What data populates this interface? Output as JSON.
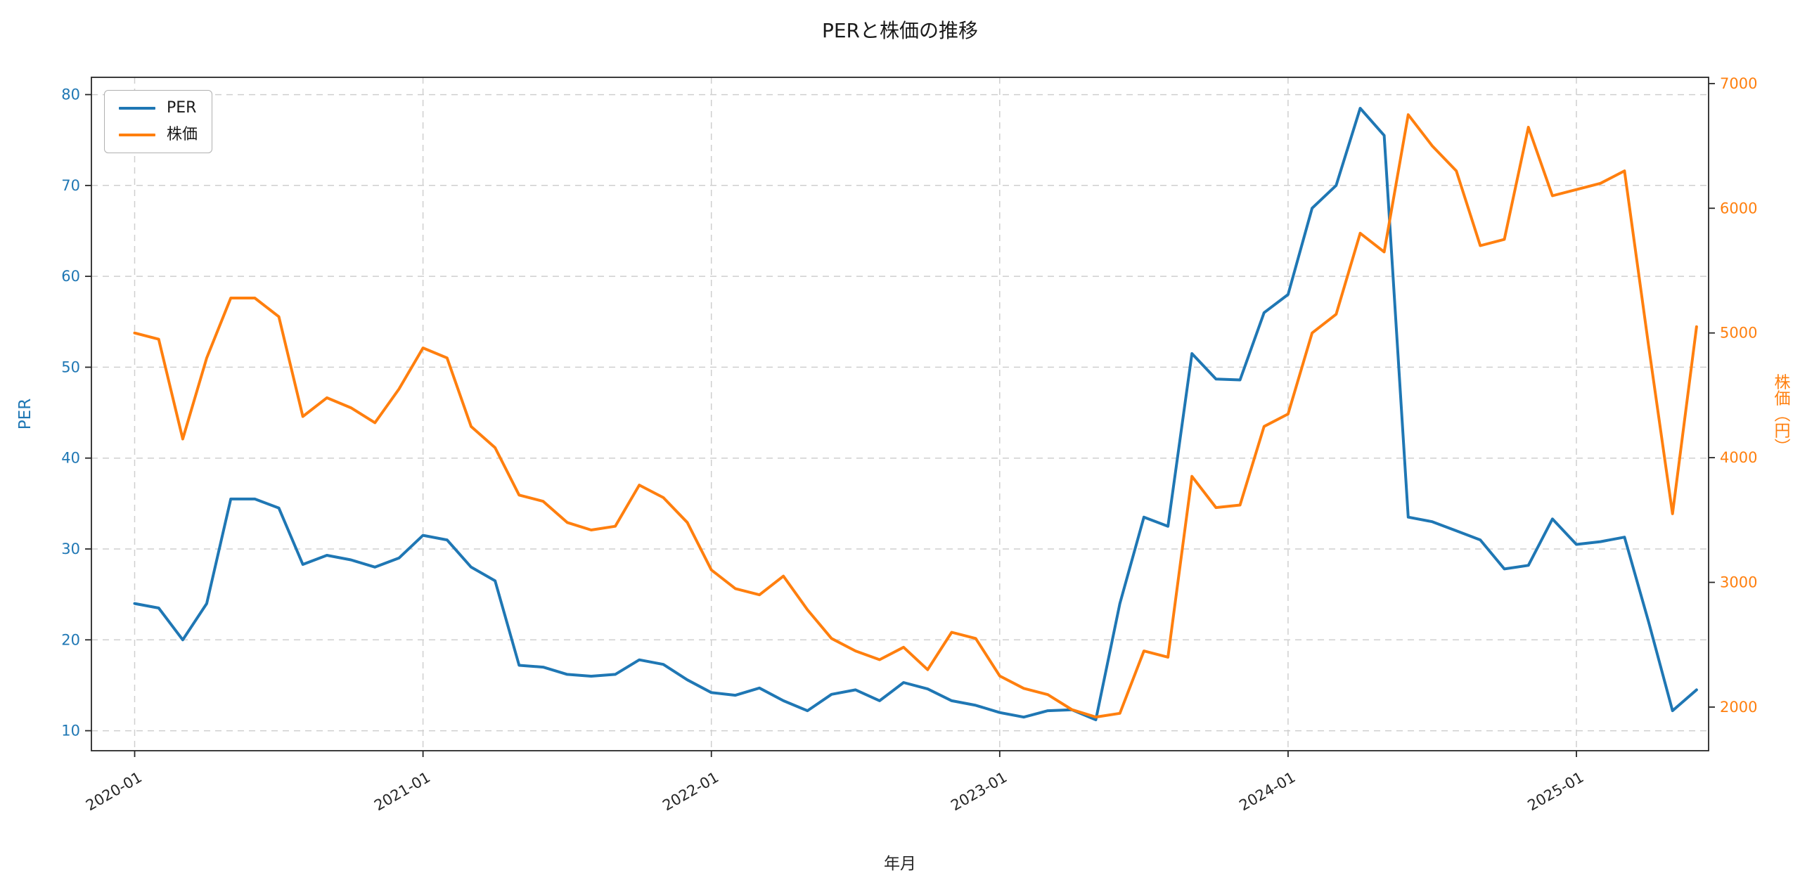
{
  "title": "PERと株価の推移",
  "x_axis": {
    "label": "年月",
    "tick_labels": [
      "2020-01",
      "2021-01",
      "2022-01",
      "2023-01",
      "2024-01",
      "2025-01"
    ]
  },
  "left_axis": {
    "label": "PER",
    "color": "#1f77b4",
    "ticks": [
      10,
      20,
      30,
      40,
      50,
      60,
      70,
      80
    ],
    "range": [
      7.8,
      81.9
    ]
  },
  "right_axis": {
    "label": "株価（円）",
    "color": "#ff7f0e",
    "ticks": [
      2000,
      3000,
      4000,
      5000,
      6000,
      7000
    ],
    "range": [
      1650,
      7050
    ]
  },
  "legend": {
    "position": "upper left",
    "items": [
      {
        "label": "PER",
        "color": "#1f77b4"
      },
      {
        "label": "株価",
        "color": "#ff7f0e"
      }
    ]
  },
  "chart_data": {
    "type": "line",
    "title": "PERと株価の推移",
    "xlabel": "年月",
    "ylabel_left": "PER",
    "ylabel_right": "株価（円）",
    "grid": true,
    "legend_position": "upper left",
    "x_tick_indices": [
      0,
      12,
      24,
      36,
      48,
      60
    ],
    "x_range_months": [
      -1.8,
      65.5
    ],
    "x": [
      "2020-01",
      "2020-02",
      "2020-03",
      "2020-04",
      "2020-05",
      "2020-06",
      "2020-07",
      "2020-08",
      "2020-09",
      "2020-10",
      "2020-11",
      "2020-12",
      "2021-01",
      "2021-02",
      "2021-03",
      "2021-04",
      "2021-05",
      "2021-06",
      "2021-07",
      "2021-08",
      "2021-09",
      "2021-10",
      "2021-11",
      "2021-12",
      "2022-01",
      "2022-02",
      "2022-03",
      "2022-04",
      "2022-05",
      "2022-06",
      "2022-07",
      "2022-08",
      "2022-09",
      "2022-10",
      "2022-11",
      "2022-12",
      "2023-01",
      "2023-02",
      "2023-03",
      "2023-04",
      "2023-05",
      "2023-06",
      "2023-07",
      "2023-08",
      "2023-09",
      "2023-10",
      "2023-11",
      "2023-12",
      "2024-01",
      "2024-02",
      "2024-03",
      "2024-04",
      "2024-05",
      "2024-06",
      "2024-07",
      "2024-08",
      "2024-09",
      "2024-10",
      "2024-11",
      "2024-12",
      "2025-01",
      "2025-02",
      "2025-03",
      "2025-04",
      "2025-05",
      "2025-06"
    ],
    "series": [
      {
        "name": "PER",
        "axis": "left",
        "color": "#1f77b4",
        "values": [
          24.0,
          23.5,
          20.0,
          24.0,
          35.5,
          35.5,
          34.5,
          28.3,
          29.3,
          28.8,
          28.0,
          29.0,
          31.5,
          31.0,
          28.0,
          26.5,
          17.2,
          17.0,
          16.2,
          16.0,
          16.2,
          17.8,
          17.3,
          15.6,
          14.2,
          13.9,
          14.7,
          13.3,
          12.2,
          14.0,
          14.5,
          13.3,
          15.3,
          14.6,
          13.3,
          12.8,
          12.0,
          11.5,
          12.2,
          12.3,
          11.2,
          24.0,
          33.5,
          32.5,
          51.5,
          48.7,
          48.6,
          56.0,
          58.0,
          67.5,
          70.0,
          78.5,
          75.5,
          33.5,
          33.0,
          32.0,
          31.0,
          27.8,
          28.2,
          33.3,
          30.5,
          30.8,
          31.3,
          22.0,
          12.2,
          14.5
        ]
      },
      {
        "name": "株価",
        "axis": "right",
        "color": "#ff7f0e",
        "values": [
          5000,
          4950,
          4150,
          4800,
          5280,
          5280,
          5130,
          4330,
          4480,
          4400,
          4280,
          4550,
          4880,
          4800,
          4250,
          4080,
          3700,
          3650,
          3480,
          3420,
          3450,
          3780,
          3680,
          3480,
          3100,
          2950,
          2900,
          3050,
          2780,
          2550,
          2450,
          2380,
          2480,
          2300,
          2600,
          2550,
          2250,
          2150,
          2100,
          1980,
          1920,
          1950,
          2450,
          2400,
          3850,
          3600,
          3620,
          4250,
          4350,
          5000,
          5150,
          5800,
          5650,
          6750,
          6500,
          6300,
          5700,
          5750,
          6650,
          6100,
          6150,
          6200,
          6300,
          4900,
          3550,
          5050
        ]
      }
    ]
  }
}
